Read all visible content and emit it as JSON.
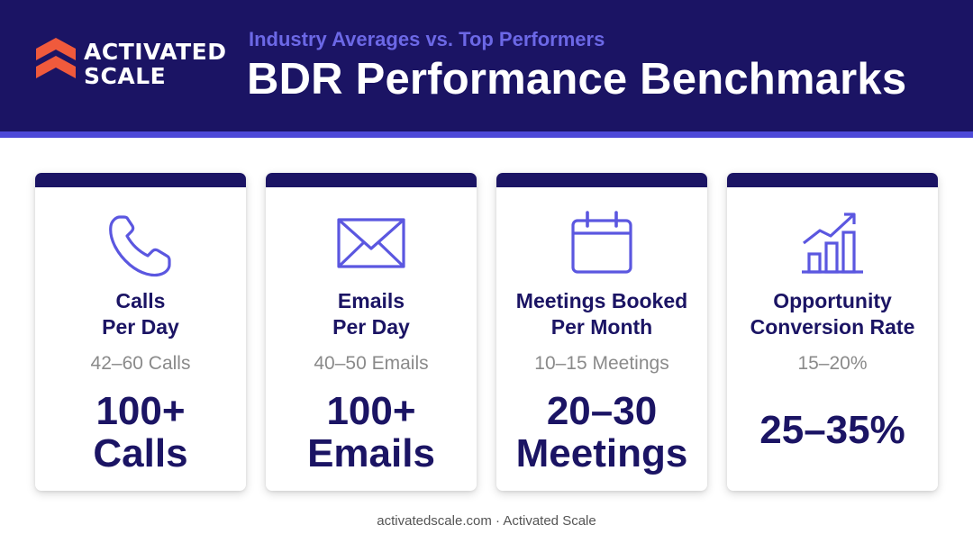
{
  "brand": {
    "logo_line1": "ACTIVATED",
    "logo_line2": "SCALE",
    "logo_color": "#f05a3c"
  },
  "header": {
    "subtitle": "Industry Averages vs. Top Performers",
    "title": "BDR Performance Benchmarks"
  },
  "colors": {
    "navy": "#1b1464",
    "accent": "#4d49d8",
    "icon": "#5b57e0",
    "muted": "#8a8a8a"
  },
  "cards": [
    {
      "icon": "phone-icon",
      "label_line1": "Calls",
      "label_line2": "Per Day",
      "industry_average": "42–60 Calls",
      "top_line1": "100+",
      "top_line2": "Calls"
    },
    {
      "icon": "envelope-icon",
      "label_line1": "Emails",
      "label_line2": "Per Day",
      "industry_average": "40–50 Emails",
      "top_line1": "100+",
      "top_line2": "Emails"
    },
    {
      "icon": "calendar-icon",
      "label_line1": "Meetings Booked",
      "label_line2": "Per Month",
      "industry_average": "10–15 Meetings",
      "top_line1": "20–30",
      "top_line2": "Meetings"
    },
    {
      "icon": "growth-chart-icon",
      "label_line1": "Opportunity",
      "label_line2": "Conversion Rate",
      "industry_average": "15–20%",
      "top_line1": "25–35%",
      "top_line2": ""
    }
  ],
  "footer": {
    "text": "activatedscale.com · Activated Scale"
  }
}
